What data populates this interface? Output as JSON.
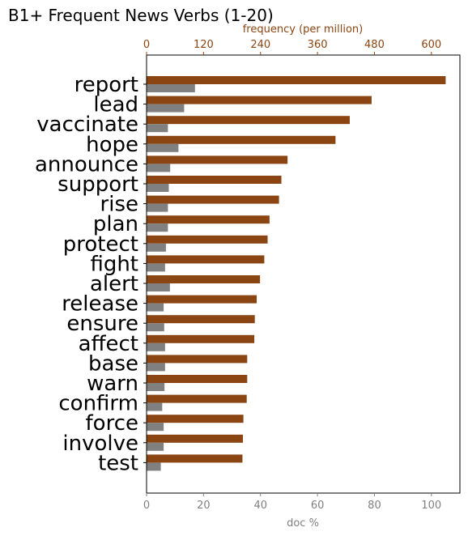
{
  "chart_data": {
    "type": "bar",
    "orientation": "horizontal",
    "title": "B1+ Frequent News Verbs (1-20)",
    "categories": [
      "report",
      "lead",
      "vaccinate",
      "hope",
      "announce",
      "support",
      "rise",
      "plan",
      "protect",
      "fight",
      "alert",
      "release",
      "ensure",
      "affect",
      "base",
      "warn",
      "confirm",
      "force",
      "involve",
      "test"
    ],
    "series": [
      {
        "axis": "top",
        "color": "#8b4513",
        "values": [
          630,
          474,
          428,
          398,
          297,
          284,
          279,
          259,
          255,
          248,
          239,
          232,
          228,
          227,
          212,
          212,
          211,
          204,
          203,
          202
        ]
      },
      {
        "axis": "bottom",
        "color": "#808080",
        "values": [
          17,
          13.2,
          7.5,
          11.2,
          8.3,
          7.8,
          7.5,
          7.5,
          6.8,
          6.5,
          8.2,
          6.0,
          6.2,
          6.5,
          6.5,
          6.3,
          5.5,
          6.0,
          6.0,
          5.0
        ]
      }
    ],
    "xlabel": "doc %",
    "xlim": [
      0,
      110
    ],
    "xticks": [
      "0",
      "20",
      "40",
      "60",
      "80",
      "100"
    ],
    "x2label": "frequency (per million)",
    "x2lim": [
      0,
      660
    ],
    "x2ticks": [
      "0",
      "120",
      "240",
      "360",
      "480",
      "600"
    ],
    "grid": false
  }
}
